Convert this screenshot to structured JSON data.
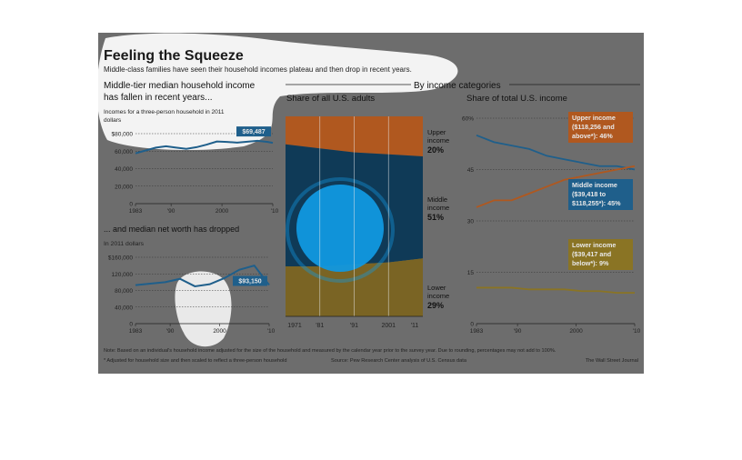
{
  "header": {
    "title": "Feeling the Squeeze",
    "subtitle": "Middle-class families have seen their household incomes plateau and then drop in recent years."
  },
  "section_left_title": "Middle-tier median household income has fallen in recent years...",
  "section_right_title": "By income categories",
  "colors": {
    "background": "#6d6d6d",
    "line": "#1f5f8b",
    "upper": "#b0581f",
    "middle": "#0f3a57",
    "lower": "#7a6424",
    "lower_line": "#8a7424",
    "highlight": "#1198e0"
  },
  "chart_data": [
    {
      "id": "income",
      "type": "line",
      "title": "",
      "ylabel": "Incomes for a three-person household in 2011 dollars",
      "x": [
        1983,
        1985,
        1987,
        1989,
        1991,
        1993,
        1995,
        1997,
        1999,
        2001,
        2003,
        2005,
        2007,
        2009,
        2010
      ],
      "values": [
        57500,
        60800,
        64000,
        65600,
        64000,
        62600,
        64500,
        67500,
        71000,
        70500,
        69800,
        70800,
        71800,
        70500,
        69487
      ],
      "ylim": [
        0,
        80000
      ],
      "yticks": [
        "0",
        "20,000",
        "40,000",
        "60,000",
        "$80,000"
      ],
      "xticks": [
        "1983",
        "'90",
        "2000",
        "'10"
      ],
      "callout": "$69,487"
    },
    {
      "id": "networth",
      "type": "line",
      "title": "... and median net worth has dropped",
      "ylabel": "In 2011 dollars",
      "x": [
        1983,
        1989,
        1992,
        1995,
        1998,
        2001,
        2004,
        2007,
        2010
      ],
      "values": [
        93000,
        100000,
        108000,
        90000,
        95000,
        110000,
        130000,
        140000,
        93150
      ],
      "ylim": [
        0,
        160000
      ],
      "yticks": [
        "0",
        "40,000",
        "80,000",
        "120,000",
        "$160,000"
      ],
      "xticks": [
        "1983",
        "'90",
        "2000",
        "'10"
      ],
      "callout": "$93,150"
    },
    {
      "id": "adults",
      "type": "area",
      "title": "Share of all U.S. adults",
      "x": [
        1971,
        1981,
        1991,
        2001,
        2011
      ],
      "xticks": [
        "1971",
        "'81",
        "'91",
        "2001",
        "'11"
      ],
      "series": [
        {
          "name": "Lower income",
          "values": [
            25,
            25,
            26,
            27,
            29
          ],
          "label": "Lower income",
          "value_label": "29%"
        },
        {
          "name": "Middle income",
          "values": [
            61,
            59,
            56,
            54,
            51
          ],
          "label": "Middle income",
          "value_label": "51%"
        },
        {
          "name": "Upper income",
          "values": [
            14,
            16,
            18,
            19,
            20
          ],
          "label": "Upper income",
          "value_label": "20%"
        }
      ]
    },
    {
      "id": "share",
      "type": "line",
      "title": "Share of total U.S. income",
      "x": [
        1983,
        1986,
        1989,
        1992,
        1995,
        1998,
        2001,
        2004,
        2007,
        2010
      ],
      "series": [
        {
          "name": "Middle",
          "values": [
            55,
            53,
            52,
            51,
            49,
            48,
            47,
            46,
            46,
            45
          ],
          "label": "Middle income ($39,418 to $118,255*): 45%"
        },
        {
          "name": "Upper",
          "values": [
            34,
            36,
            36,
            38,
            40,
            42,
            43,
            44,
            45,
            46
          ],
          "label": "Upper income ($118,256 and above*): 46%"
        },
        {
          "name": "Lower",
          "values": [
            10.5,
            10.5,
            10.5,
            10,
            10,
            10,
            9.5,
            9.5,
            9,
            9
          ],
          "label": "Lower income ($39,417 and below*): 9%"
        }
      ],
      "ylim": [
        0,
        60
      ],
      "yticks": [
        "0",
        "15",
        "30",
        "45",
        "60%"
      ],
      "xticks": [
        "1983",
        "'90",
        "2000",
        "'10"
      ]
    }
  ],
  "footer": {
    "note": "Note: Based on an individual's household income adjusted for the size of the household and measured by the calendar year prior to the survey year. Due to rounding, percentages may not add to 100%.",
    "adjust_note": "* Adjusted for household size and then scaled to reflect a three-person household",
    "source": "Source: Pew Research Center analysis of U.S. Census data",
    "credit": "The Wall Street Journal"
  }
}
